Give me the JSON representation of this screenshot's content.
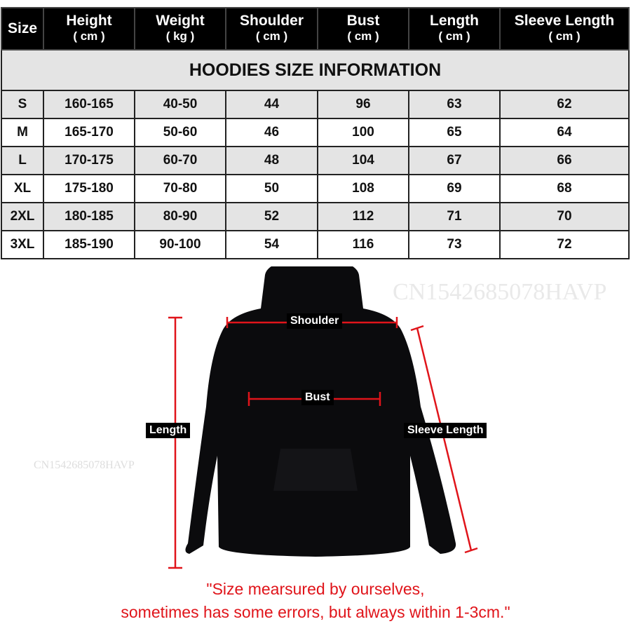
{
  "title": "HOODIES SIZE INFORMATION",
  "columns": [
    {
      "label": "Size",
      "unit": ""
    },
    {
      "label": "Height",
      "unit": "( cm )"
    },
    {
      "label": "Weight",
      "unit": "( kg )"
    },
    {
      "label": "Shoulder",
      "unit": "( cm )"
    },
    {
      "label": "Bust",
      "unit": "( cm )"
    },
    {
      "label": "Length",
      "unit": "( cm )"
    },
    {
      "label": "Sleeve Length",
      "unit": "( cm )"
    }
  ],
  "rows": [
    [
      "S",
      "160-165",
      "40-50",
      "44",
      "96",
      "63",
      "62"
    ],
    [
      "M",
      "165-170",
      "50-60",
      "46",
      "100",
      "65",
      "64"
    ],
    [
      "L",
      "170-175",
      "60-70",
      "48",
      "104",
      "67",
      "66"
    ],
    [
      "XL",
      "175-180",
      "70-80",
      "50",
      "108",
      "69",
      "68"
    ],
    [
      "2XL",
      "180-185",
      "80-90",
      "52",
      "112",
      "71",
      "70"
    ],
    [
      "3XL",
      "185-190",
      "90-100",
      "54",
      "116",
      "73",
      "72"
    ]
  ],
  "diagram": {
    "shoulder": "Shoulder",
    "bust": "Bust",
    "length": "Length",
    "sleeve_length": "Sleeve Length",
    "measure_line_color": "#e0141a"
  },
  "watermark": "CN1542685078HAVP",
  "note": {
    "line1": "\"Size mearsured by ourselves,",
    "line2": "sometimes has some errors, but always within 1-3cm.\""
  }
}
